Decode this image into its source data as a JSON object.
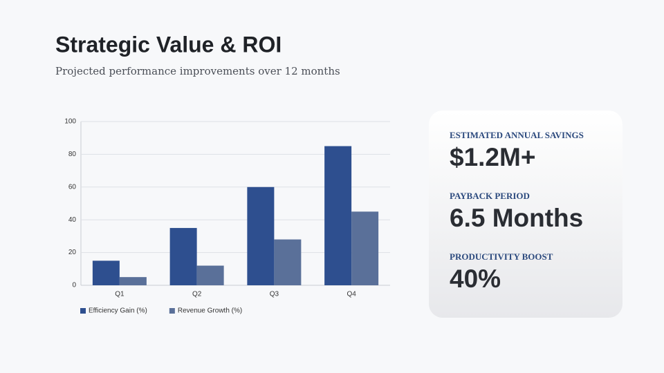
{
  "title": "Strategic Value & ROI",
  "subtitle": "Projected performance improvements over 12 months",
  "chart_data": {
    "type": "bar",
    "categories": [
      "Q1",
      "Q2",
      "Q3",
      "Q4"
    ],
    "series": [
      {
        "name": "Efficiency Gain (%)",
        "color": "#2e4f8f",
        "values": [
          15,
          35,
          60,
          85
        ]
      },
      {
        "name": "Revenue Growth (%)",
        "color": "#5a7099",
        "values": [
          5,
          12,
          28,
          45
        ]
      }
    ],
    "ylim": [
      0,
      100
    ],
    "yticks": [
      0,
      20,
      40,
      60,
      80,
      100
    ],
    "grid": true,
    "legend": "bottom-left"
  },
  "metrics": [
    {
      "label": "ESTIMATED ANNUAL SAVINGS",
      "value": "$1.2M+"
    },
    {
      "label": "PAYBACK PERIOD",
      "value": "6.5 Months"
    },
    {
      "label": "PRODUCTIVITY BOOST",
      "value": "40%"
    }
  ]
}
